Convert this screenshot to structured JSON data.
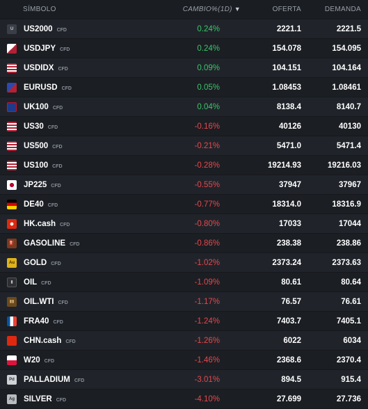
{
  "header": {
    "symbol": "SÍMBOLO",
    "change": "CAMBIO%(1D)",
    "sort_arrow": "▼",
    "bid": "OFERTA",
    "ask": "DEMANDA"
  },
  "colors": {
    "positive": "#3cc46a",
    "negative": "#e5484d"
  },
  "rows": [
    {
      "symbol": "US2000",
      "tag": "CFD",
      "change": "0.24%",
      "bid": "2221.1",
      "ask": "2221.5",
      "dir": "pos",
      "icon": "us2000-icon",
      "icon_text": "U"
    },
    {
      "symbol": "USDJPY",
      "tag": "CFD",
      "change": "0.24%",
      "bid": "154.078",
      "ask": "154.095",
      "dir": "pos",
      "icon": "usdjpy-flag-icon",
      "icon_text": ""
    },
    {
      "symbol": "USDIDX",
      "tag": "CFD",
      "change": "0.09%",
      "bid": "104.151",
      "ask": "104.164",
      "dir": "pos",
      "icon": "us-flag-icon",
      "icon_text": ""
    },
    {
      "symbol": "EURUSD",
      "tag": "CFD",
      "change": "0.05%",
      "bid": "1.08453",
      "ask": "1.08461",
      "dir": "pos",
      "icon": "eurusd-flag-icon",
      "icon_text": ""
    },
    {
      "symbol": "UK100",
      "tag": "CFD",
      "change": "0.04%",
      "bid": "8138.4",
      "ask": "8140.7",
      "dir": "pos",
      "icon": "uk-flag-icon",
      "icon_text": ""
    },
    {
      "symbol": "US30",
      "tag": "CFD",
      "change": "-0.16%",
      "bid": "40126",
      "ask": "40130",
      "dir": "neg",
      "icon": "us-flag-icon",
      "icon_text": ""
    },
    {
      "symbol": "US500",
      "tag": "CFD",
      "change": "-0.21%",
      "bid": "5471.0",
      "ask": "5471.4",
      "dir": "neg",
      "icon": "us-flag-icon",
      "icon_text": ""
    },
    {
      "symbol": "US100",
      "tag": "CFD",
      "change": "-0.28%",
      "bid": "19214.93",
      "ask": "19216.03",
      "dir": "neg",
      "icon": "us-flag-icon",
      "icon_text": ""
    },
    {
      "symbol": "JP225",
      "tag": "CFD",
      "change": "-0.55%",
      "bid": "37947",
      "ask": "37967",
      "dir": "neg",
      "icon": "japan-flag-icon",
      "icon_text": ""
    },
    {
      "symbol": "DE40",
      "tag": "CFD",
      "change": "-0.77%",
      "bid": "18314.0",
      "ask": "18316.9",
      "dir": "neg",
      "icon": "germany-flag-icon",
      "icon_text": ""
    },
    {
      "symbol": "HK.cash",
      "tag": "CFD",
      "change": "-0.80%",
      "bid": "17033",
      "ask": "17044",
      "dir": "neg",
      "icon": "hongkong-flag-icon",
      "icon_text": ""
    },
    {
      "symbol": "GASOLINE",
      "tag": "CFD",
      "change": "-0.86%",
      "bid": "238.38",
      "ask": "238.86",
      "dir": "neg",
      "icon": "gasoline-icon",
      "icon_text": "⛽"
    },
    {
      "symbol": "GOLD",
      "tag": "CFD",
      "change": "-1.02%",
      "bid": "2373.24",
      "ask": "2373.63",
      "dir": "neg",
      "icon": "gold-icon",
      "icon_text": "Au"
    },
    {
      "symbol": "OIL",
      "tag": "CFD",
      "change": "-1.09%",
      "bid": "80.61",
      "ask": "80.64",
      "dir": "neg",
      "icon": "oil-icon",
      "icon_text": "▮"
    },
    {
      "symbol": "OIL.WTI",
      "tag": "CFD",
      "change": "-1.17%",
      "bid": "76.57",
      "ask": "76.61",
      "dir": "neg",
      "icon": "oil-barrel-icon",
      "icon_text": "▮▮"
    },
    {
      "symbol": "FRA40",
      "tag": "CFD",
      "change": "-1.24%",
      "bid": "7403.7",
      "ask": "7405.1",
      "dir": "neg",
      "icon": "france-flag-icon",
      "icon_text": ""
    },
    {
      "symbol": "CHN.cash",
      "tag": "CFD",
      "change": "-1.26%",
      "bid": "6022",
      "ask": "6034",
      "dir": "neg",
      "icon": "china-flag-icon",
      "icon_text": ""
    },
    {
      "symbol": "W20",
      "tag": "CFD",
      "change": "-1.46%",
      "bid": "2368.6",
      "ask": "2370.4",
      "dir": "neg",
      "icon": "poland-flag-icon",
      "icon_text": ""
    },
    {
      "symbol": "PALLADIUM",
      "tag": "CFD",
      "change": "-3.01%",
      "bid": "894.5",
      "ask": "915.4",
      "dir": "neg",
      "icon": "palladium-icon",
      "icon_text": "Pd"
    },
    {
      "symbol": "SILVER",
      "tag": "CFD",
      "change": "-4.10%",
      "bid": "27.699",
      "ask": "27.736",
      "dir": "neg",
      "icon": "silver-icon",
      "icon_text": "Ag"
    }
  ]
}
